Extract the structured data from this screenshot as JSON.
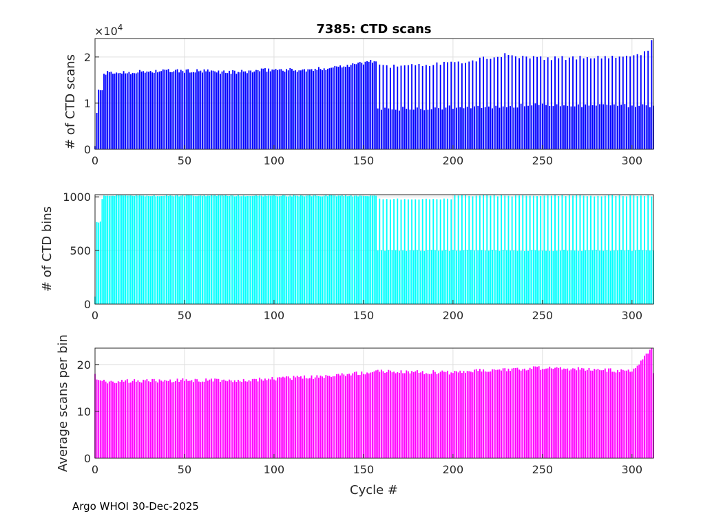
{
  "figure": {
    "title": "7385: CTD scans",
    "footer": "Argo WHOI 30-Dec-2025",
    "xlabel": "Cycle #",
    "x_tick_labels": [
      "0",
      "50",
      "100",
      "150",
      "200",
      "250",
      "300"
    ]
  },
  "chart_data": [
    {
      "type": "bar",
      "name": "scans",
      "ylabel": "# of CTD scans",
      "exponent_label": "×10",
      "exponent_power": "4",
      "color": "#0000ff",
      "xlim": [
        0,
        312
      ],
      "ylim": [
        0,
        24000
      ],
      "y_ticks": [
        0,
        10000,
        20000
      ],
      "y_tick_labels": [
        "0",
        "1",
        "2"
      ],
      "grid": true,
      "description_rule": "cycles 1-157 descending profiles; later odd cycles long (~18.3k-24k), even cycles short (~8.5k-9.8k)",
      "anchors": {
        "0": 700,
        "1": 7900,
        "2": 12900,
        "3": 12800,
        "4": 12800,
        "5": 16500,
        "20": 16700,
        "40": 17000,
        "60": 16900,
        "80": 16700,
        "100": 17300,
        "120": 17100,
        "140": 18200,
        "150": 18700,
        "155": 19200,
        "157": 19200,
        "short": {
          "158": 8600,
          "200": 9100,
          "250": 9600,
          "312": 9300
        },
        "long": {
          "159": 18000,
          "200": 18700,
          "229": 20400,
          "250": 19700,
          "300": 20100,
          "309": 21400,
          "311": 24000
        }
      }
    },
    {
      "type": "bar",
      "name": "bins",
      "ylabel": "# of CTD bins",
      "color": "#00ffff",
      "xlim": [
        0,
        312
      ],
      "ylim": [
        0,
        1020
      ],
      "y_ticks": [
        0,
        500,
        1000
      ],
      "y_tick_labels": [
        "0",
        "500",
        "1000"
      ],
      "grid": true,
      "anchors": {
        "0": 70,
        "1": 765,
        "2": 760,
        "3": 770,
        "4": 980,
        "5": 1010,
        "157": 1010,
        "short": {
          "158": 500,
          "312": 500
        },
        "long": {
          "159": 980,
          "199": 980,
          "201": 1010,
          "300": 1010
        }
      }
    },
    {
      "type": "bar",
      "name": "average",
      "ylabel": "Average scans per bin",
      "color": "#ff00ff",
      "xlim": [
        0,
        312
      ],
      "ylim": [
        0,
        23.5
      ],
      "y_ticks": [
        0,
        10,
        20
      ],
      "y_tick_labels": [
        "0",
        "10",
        "20"
      ],
      "grid": true,
      "anchors": {
        "0": 18,
        "1": 16.8,
        "5": 16.4,
        "40": 16.6,
        "80": 16.6,
        "100": 17.0,
        "130": 17.4,
        "150": 18.3,
        "157": 18.5,
        "200": 18.3,
        "230": 19.0,
        "250": 19.3,
        "300": 18.6,
        "311": 23.5,
        "312": 17.8
      }
    }
  ]
}
